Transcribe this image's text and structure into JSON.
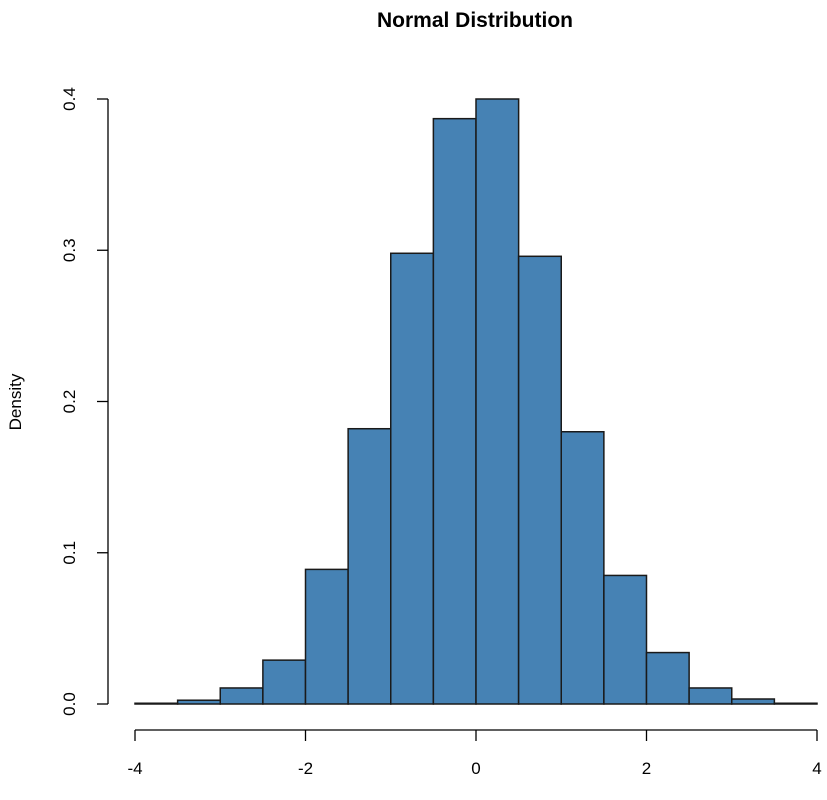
{
  "chart_data": {
    "type": "bar",
    "title": "Normal Distribution",
    "xlabel": "",
    "ylabel": "Density",
    "bin_edges": [
      -4,
      -3.5,
      -3,
      -2.5,
      -2,
      -1.5,
      -1,
      -0.5,
      0,
      0.5,
      1,
      1.5,
      2,
      2.5,
      3,
      3.5,
      4
    ],
    "values": [
      0.0005,
      0.0025,
      0.0106,
      0.029,
      0.089,
      0.182,
      0.298,
      0.387,
      0.4,
      0.296,
      0.18,
      0.085,
      0.034,
      0.0106,
      0.0033,
      0.0005
    ],
    "xlim": [
      -4,
      4
    ],
    "ylim": [
      0,
      0.4
    ],
    "xticks": [
      -4,
      -2,
      0,
      2,
      4
    ],
    "yticks": [
      0.0,
      0.1,
      0.2,
      0.3,
      0.4
    ],
    "xtick_labels": [
      "-4",
      "-2",
      "0",
      "2",
      "4"
    ],
    "ytick_labels": [
      "0.0",
      "0.1",
      "0.2",
      "0.3",
      "0.4"
    ],
    "bar_color": "#4682B4",
    "edge_color": "#1a1a1a",
    "grid": false
  }
}
